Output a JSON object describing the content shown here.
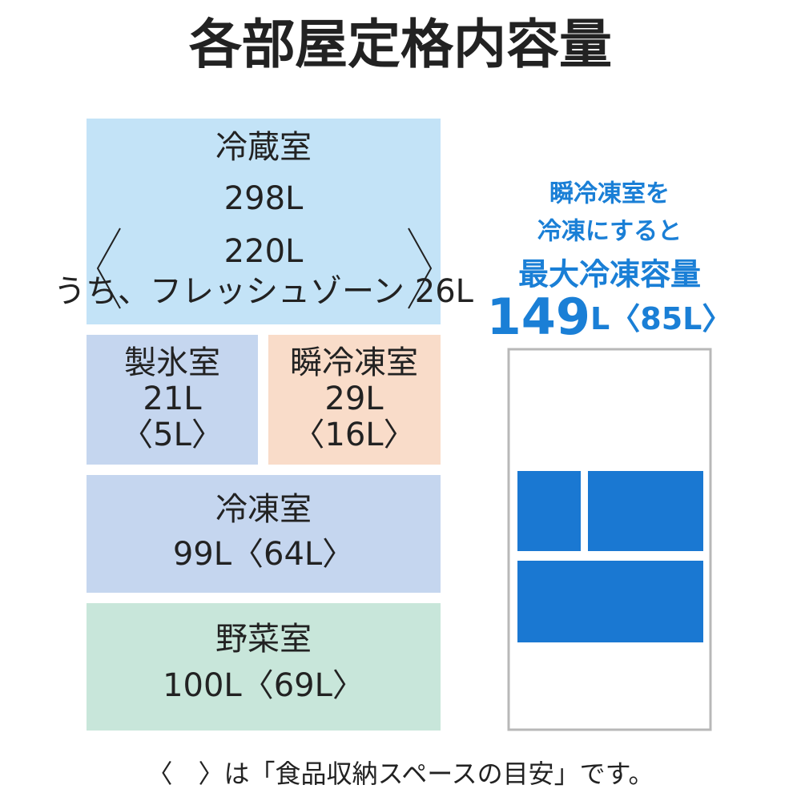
{
  "title": "各部屋定格内容量",
  "compartments": {
    "refrigerator": {
      "name": "冷蔵室",
      "lines": [
        "298L",
        "220L",
        "うち、フレッシュゾーン 26L"
      ]
    },
    "ice": {
      "name": "製氷室",
      "lines": [
        "21L",
        "〈5L〉"
      ]
    },
    "quick_freeze": {
      "name": "瞬冷凍室",
      "lines": [
        "29L",
        "〈16L〉"
      ]
    },
    "freezer": {
      "name": "冷凍室",
      "lines": [
        "99L〈64L〉"
      ]
    },
    "vegetable": {
      "name": "野菜室",
      "lines": [
        "100L〈69L〉"
      ]
    }
  },
  "side": {
    "lines": [
      "瞬冷凍室を",
      "冷凍にすると",
      "最大冷凍容量"
    ],
    "capacity": "149",
    "capacity_rest": "L〈85L〉"
  },
  "footer": "〈　〉は「食品収納スペースの目安」です。"
}
